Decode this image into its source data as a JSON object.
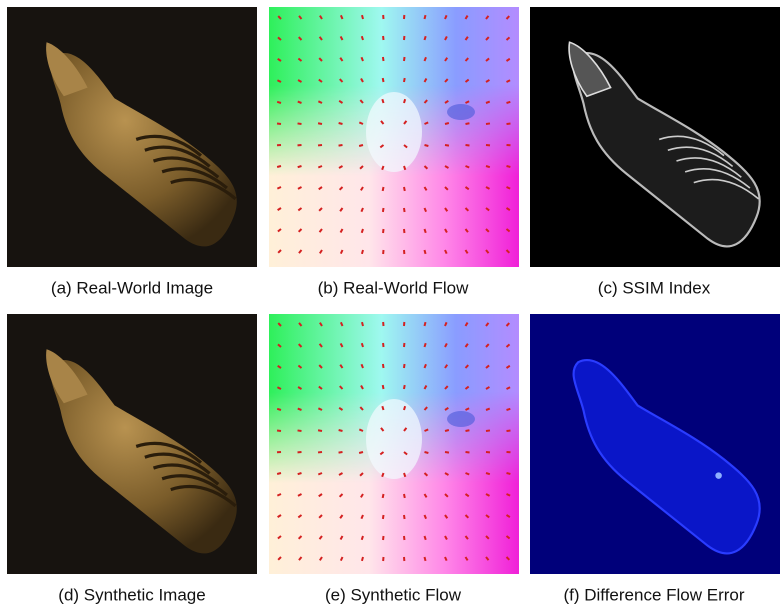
{
  "panels": [
    {
      "caption": "(a) Real-World Image"
    },
    {
      "caption": "(b) Real-World Flow"
    },
    {
      "caption": "(c) SSIM Index"
    },
    {
      "caption": "(d) Synthetic Image"
    },
    {
      "caption": "(e) Synthetic Flow"
    },
    {
      "caption": "(f) Difference Flow Error"
    }
  ]
}
